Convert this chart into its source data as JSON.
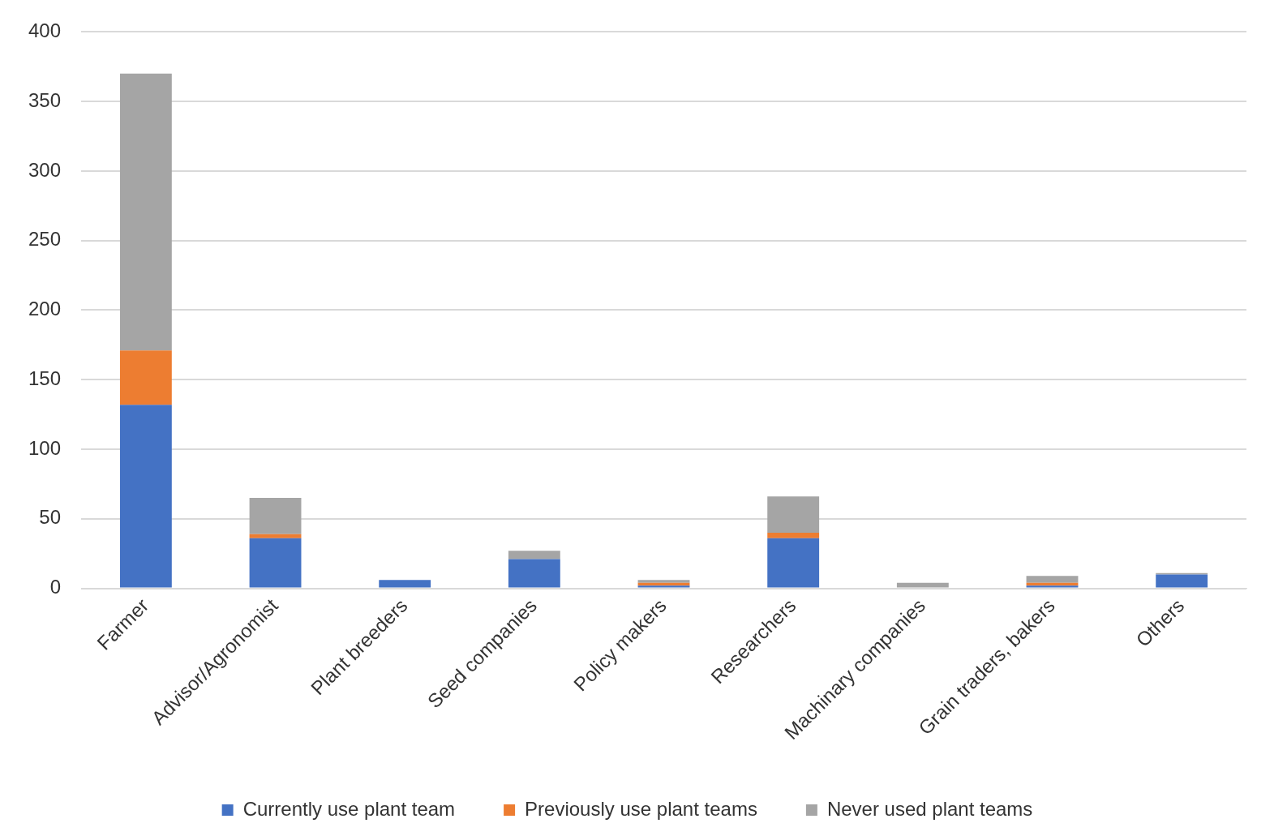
{
  "chart_data": {
    "type": "bar",
    "stacked": true,
    "categories": [
      "Farmer",
      "Advisor/Agronomist",
      "Plant breeders",
      "Seed companies",
      "Policy makers",
      "Researchers",
      "Machinary companies",
      "Grain traders, bakers",
      "Others"
    ],
    "series": [
      {
        "name": "Currently use plant team",
        "color": "#4472c4",
        "values": [
          132,
          36,
          6,
          21,
          2,
          36,
          0,
          2,
          10
        ]
      },
      {
        "name": "Previously use plant teams",
        "color": "#ed7d31",
        "values": [
          39,
          3,
          0,
          0,
          2,
          4,
          0,
          2,
          0
        ]
      },
      {
        "name": "Never used plant teams",
        "color": "#a5a5a5",
        "values": [
          199,
          26,
          0,
          6,
          2,
          26,
          4,
          5,
          1
        ]
      }
    ],
    "ylim": [
      0,
      400
    ],
    "yticks": [
      0,
      50,
      100,
      150,
      200,
      250,
      300,
      350,
      400
    ],
    "grid": "y",
    "legend": "bottom"
  }
}
